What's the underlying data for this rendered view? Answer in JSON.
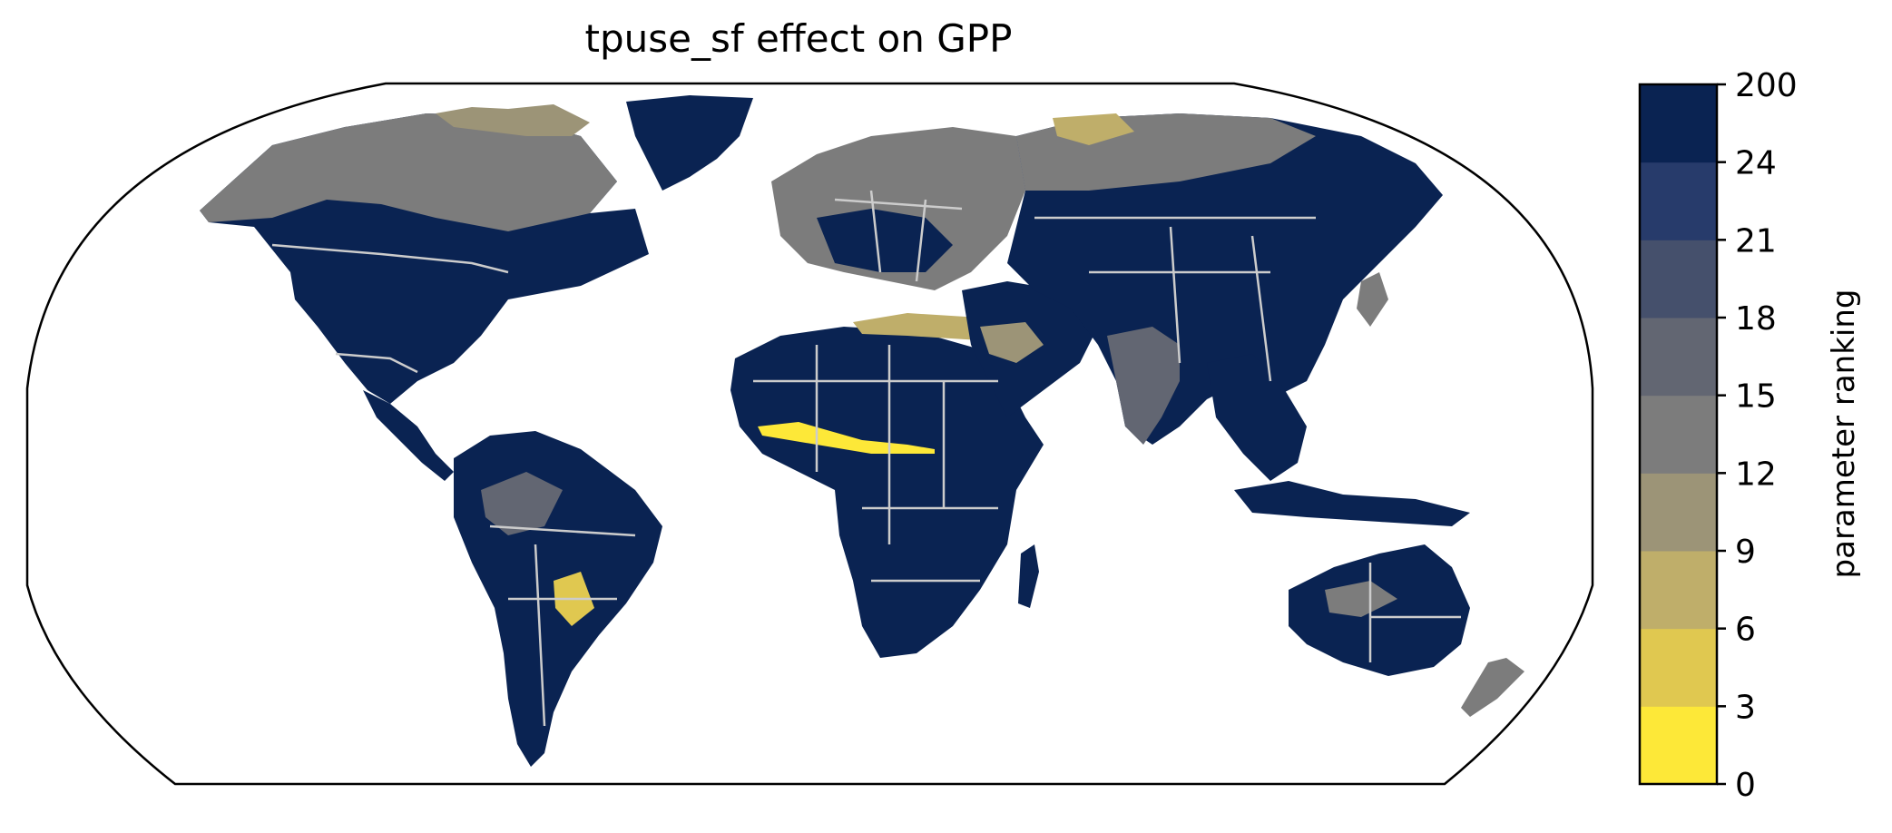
{
  "title": "tpuse_sf effect on GPP",
  "colorbar": {
    "label": "parameter ranking",
    "ticks": [
      "0",
      "3",
      "6",
      "9",
      "12",
      "15",
      "18",
      "21",
      "24",
      "200"
    ],
    "colors": [
      "#fde838",
      "#e0c850",
      "#bfae6a",
      "#9c9477",
      "#7c7c7c",
      "#626672",
      "#45506c",
      "#273b6b",
      "#0a2352"
    ]
  },
  "map_style": {
    "projection": "Robinson",
    "coastline_color": "#cccccc",
    "border_color": "#cccccc",
    "dominant_class_color": "#0a2352"
  }
}
